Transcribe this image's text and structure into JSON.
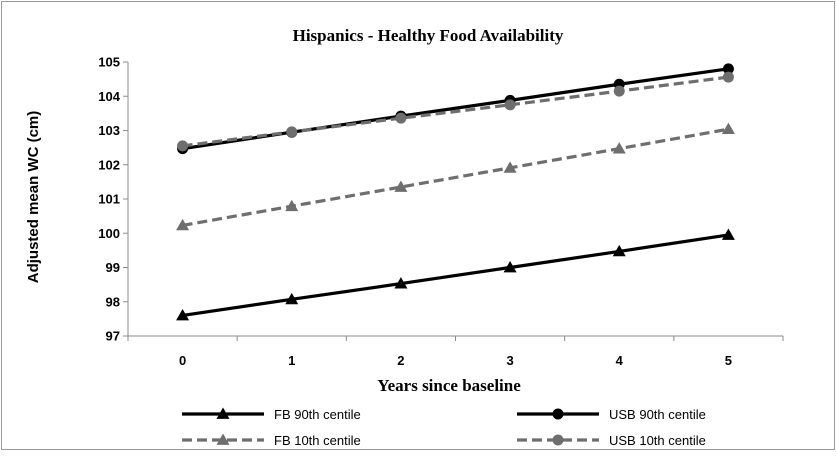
{
  "chart_data": {
    "type": "line",
    "title": "Hispanics - Healthy Food Availability",
    "xlabel": "Years since baseline",
    "ylabel": "Adjusted mean WC (cm)",
    "x": [
      0,
      1,
      2,
      3,
      4,
      5
    ],
    "x_tick_labels": [
      "0",
      "1",
      "2",
      "3",
      "4",
      "5"
    ],
    "ylim": [
      97,
      105
    ],
    "y_ticks": [
      97,
      98,
      99,
      100,
      101,
      102,
      103,
      104,
      105
    ],
    "grid": false,
    "legend_position": "bottom",
    "series": [
      {
        "name": "FB 90th centile",
        "values": [
          97.6,
          98.07,
          98.53,
          99.0,
          99.47,
          99.95
        ],
        "color": "#000000",
        "dash": "solid",
        "marker": "triangle"
      },
      {
        "name": "USB 90th centile",
        "values": [
          102.47,
          102.95,
          103.42,
          103.88,
          104.35,
          104.8
        ],
        "color": "#000000",
        "dash": "solid",
        "marker": "circle"
      },
      {
        "name": "FB 10th centile",
        "values": [
          100.23,
          100.79,
          101.35,
          101.91,
          102.47,
          103.04
        ],
        "color": "#6e6e6e",
        "dash": "dashed",
        "marker": "triangle"
      },
      {
        "name": "USB 10th centile",
        "values": [
          102.55,
          102.96,
          103.36,
          103.75,
          104.15,
          104.56
        ],
        "color": "#6e6e6e",
        "dash": "dashed",
        "marker": "circle"
      }
    ]
  }
}
